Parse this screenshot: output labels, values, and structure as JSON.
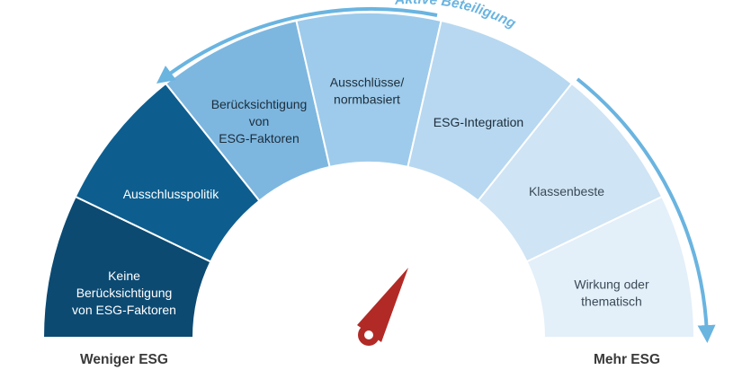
{
  "segments": [
    {
      "lines": [
        "Keine",
        "Berücksichtigung",
        "von ESG-Faktoren"
      ],
      "fill": "#0c4a72",
      "text_color": "#ffffff"
    },
    {
      "lines": [
        "Ausschlusspolitik"
      ],
      "fill": "#0d5e8f",
      "text_color": "#ffffff"
    },
    {
      "lines": [
        "Berücksichtigung",
        "von",
        "ESG-Faktoren"
      ],
      "fill": "#7db7e0",
      "text_color": "#1d2d3b"
    },
    {
      "lines": [
        "Ausschlüsse/",
        "normbasiert"
      ],
      "fill": "#9ecbeb",
      "text_color": "#1d2d3b"
    },
    {
      "lines": [
        "ESG-Integration"
      ],
      "fill": "#b7d8f0",
      "text_color": "#1d2d3b"
    },
    {
      "lines": [
        "Klassenbeste"
      ],
      "fill": "#cfe4f4",
      "text_color": "#3a4a57"
    },
    {
      "lines": [
        "Wirkung oder",
        "thematisch"
      ],
      "fill": "#e3eff9",
      "text_color": "#3a4a57"
    }
  ],
  "labels": {
    "left": "Weniger ESG",
    "right": "Mehr ESG",
    "arc": "Aktive Beteiligung"
  },
  "colors": {
    "arc_arrow": "#6ab4e0",
    "needle": "#b22a26",
    "background": "#ffffff"
  }
}
